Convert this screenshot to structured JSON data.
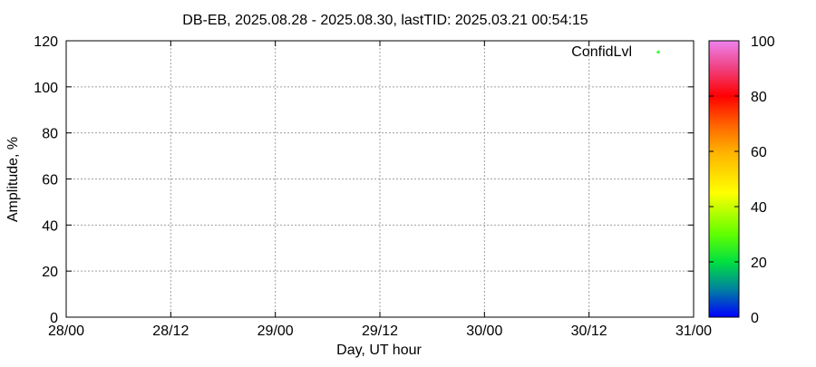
{
  "chart_data": {
    "type": "scatter",
    "title": "DB-EB, 2025.08.28 - 2025.08.30, lastTID: 2025.03.21 00:54:15",
    "xlabel": "Day, UT hour",
    "ylabel": "Amplitude, %",
    "xticks": [
      "28/00",
      "28/12",
      "29/00",
      "29/12",
      "30/00",
      "30/12",
      "31/00"
    ],
    "yticks": [
      0,
      20,
      40,
      60,
      80,
      100,
      120
    ],
    "ylim": [
      0,
      120
    ],
    "grid": true,
    "legend": {
      "placement": "top-right",
      "entries": [
        {
          "label": "ConfidLvl",
          "color": "#00ff00"
        }
      ]
    },
    "series": [
      {
        "name": "ConfidLvl",
        "points": []
      }
    ],
    "colorbar": {
      "range": [
        0,
        100
      ],
      "ticks": [
        0,
        20,
        40,
        60,
        80,
        100
      ],
      "stops": [
        {
          "value": 0,
          "color": "#0000ff"
        },
        {
          "value": 10,
          "color": "#0080a0"
        },
        {
          "value": 20,
          "color": "#00e040"
        },
        {
          "value": 30,
          "color": "#60ff00"
        },
        {
          "value": 45,
          "color": "#ffff00"
        },
        {
          "value": 60,
          "color": "#ffb000"
        },
        {
          "value": 70,
          "color": "#ff6000"
        },
        {
          "value": 80,
          "color": "#ff0000"
        },
        {
          "value": 90,
          "color": "#f04080"
        },
        {
          "value": 100,
          "color": "#ee82ee"
        }
      ]
    }
  }
}
